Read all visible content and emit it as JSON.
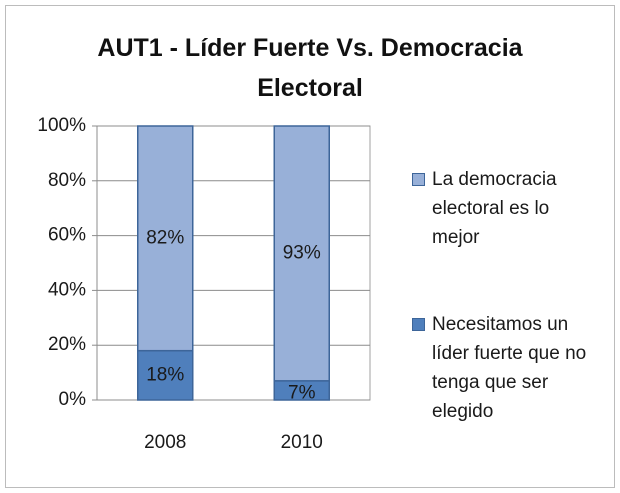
{
  "chart_data": {
    "type": "stacked_bar",
    "title": "AUT1 - Líder Fuerte Vs. Democracia Electoral",
    "categories": [
      "2008",
      "2010"
    ],
    "series": [
      {
        "name": "Necesitamos un líder fuerte que no tenga que ser elegido",
        "color": "#4f7fbc",
        "values": [
          18,
          7
        ],
        "value_labels": [
          "18%",
          "7%"
        ]
      },
      {
        "name": "La democracia electoral es lo mejor",
        "color": "#98b0d8",
        "values": [
          82,
          93
        ],
        "value_labels": [
          "82%",
          "93%"
        ]
      }
    ],
    "ylim": [
      0,
      100
    ],
    "yticks": [
      {
        "value": 0,
        "label": "0%"
      },
      {
        "value": 20,
        "label": "20%"
      },
      {
        "value": 40,
        "label": "40%"
      },
      {
        "value": 60,
        "label": "60%"
      },
      {
        "value": 80,
        "label": "80%"
      },
      {
        "value": 100,
        "label": "100%"
      }
    ],
    "grid": true,
    "legend": "right"
  }
}
